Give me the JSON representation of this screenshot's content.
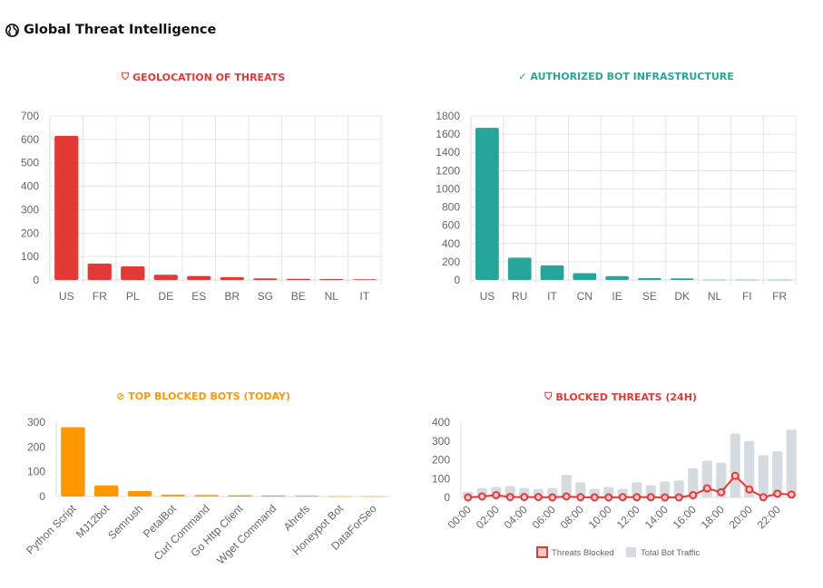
{
  "header": {
    "title": "Global Threat Intelligence",
    "icon": "globe-icon"
  },
  "chart_data": [
    {
      "id": "geo",
      "type": "bar",
      "title": "GEOLOCATION OF THREATS",
      "icon": "shield-icon",
      "color": "#e53935",
      "categories": [
        "US",
        "FR",
        "PL",
        "DE",
        "ES",
        "BR",
        "SG",
        "BE",
        "NL",
        "IT"
      ],
      "values": [
        615,
        70,
        58,
        22,
        17,
        12,
        7,
        5,
        4,
        3
      ],
      "ylim": [
        0,
        700
      ],
      "yticks": [
        0,
        100,
        200,
        300,
        400,
        500,
        600,
        700
      ],
      "grid": true
    },
    {
      "id": "auth",
      "type": "bar",
      "title": "AUTHORIZED BOT INFRASTRUCTURE",
      "icon": "check-circle-icon",
      "color": "#26a69a",
      "categories": [
        "US",
        "RU",
        "IT",
        "CN",
        "IE",
        "SE",
        "DK",
        "NL",
        "FI",
        "FR"
      ],
      "values": [
        1670,
        245,
        160,
        75,
        42,
        20,
        18,
        3,
        3,
        2
      ],
      "ylim": [
        0,
        1800
      ],
      "yticks": [
        0,
        200,
        400,
        600,
        800,
        1000,
        1200,
        1400,
        1600,
        1800
      ],
      "grid": true
    },
    {
      "id": "bots",
      "type": "bar",
      "title": "TOP BLOCKED BOTS (TODAY)",
      "icon": "robot-off-icon",
      "color": "#ff9800",
      "categories": [
        "Python Script",
        "MJ12bot",
        "Semrush",
        "PetalBot",
        "Curl Command",
        "Go Http Client",
        "Wget Command",
        "Ahrefs",
        "Honeypot Bot",
        "DataForSeo"
      ],
      "values": [
        280,
        45,
        22,
        7,
        6,
        5,
        4,
        3,
        1,
        1
      ],
      "ylim": [
        0,
        300
      ],
      "yticks": [
        0,
        100,
        200,
        300
      ],
      "grid": false
    },
    {
      "id": "h24",
      "type": "bar+line",
      "title": "BLOCKED THREATS (24H)",
      "icon": "shield-icon",
      "categories": [
        "00:00",
        "01:00",
        "02:00",
        "03:00",
        "04:00",
        "05:00",
        "06:00",
        "07:00",
        "08:00",
        "09:00",
        "10:00",
        "11:00",
        "12:00",
        "13:00",
        "14:00",
        "15:00",
        "16:00",
        "17:00",
        "18:00",
        "19:00",
        "20:00",
        "21:00",
        "22:00",
        "23:00"
      ],
      "series": [
        {
          "name": "Threats Blocked",
          "type": "line",
          "color": "#e53935",
          "values": [
            0,
            5,
            12,
            2,
            2,
            2,
            0,
            5,
            1,
            0,
            0,
            1,
            1,
            1,
            0,
            0,
            12,
            48,
            28,
            115,
            42,
            1,
            20,
            15
          ]
        },
        {
          "name": "Total Bot Traffic",
          "type": "bar",
          "color": "#d5dbdf",
          "values": [
            30,
            50,
            55,
            60,
            50,
            45,
            50,
            120,
            80,
            45,
            55,
            45,
            80,
            65,
            85,
            90,
            155,
            195,
            185,
            340,
            300,
            225,
            245,
            360
          ]
        }
      ],
      "ylim": [
        0,
        400
      ],
      "yticks": [
        0,
        100,
        200,
        300,
        400
      ],
      "grid": false,
      "legend": "bottom"
    }
  ]
}
